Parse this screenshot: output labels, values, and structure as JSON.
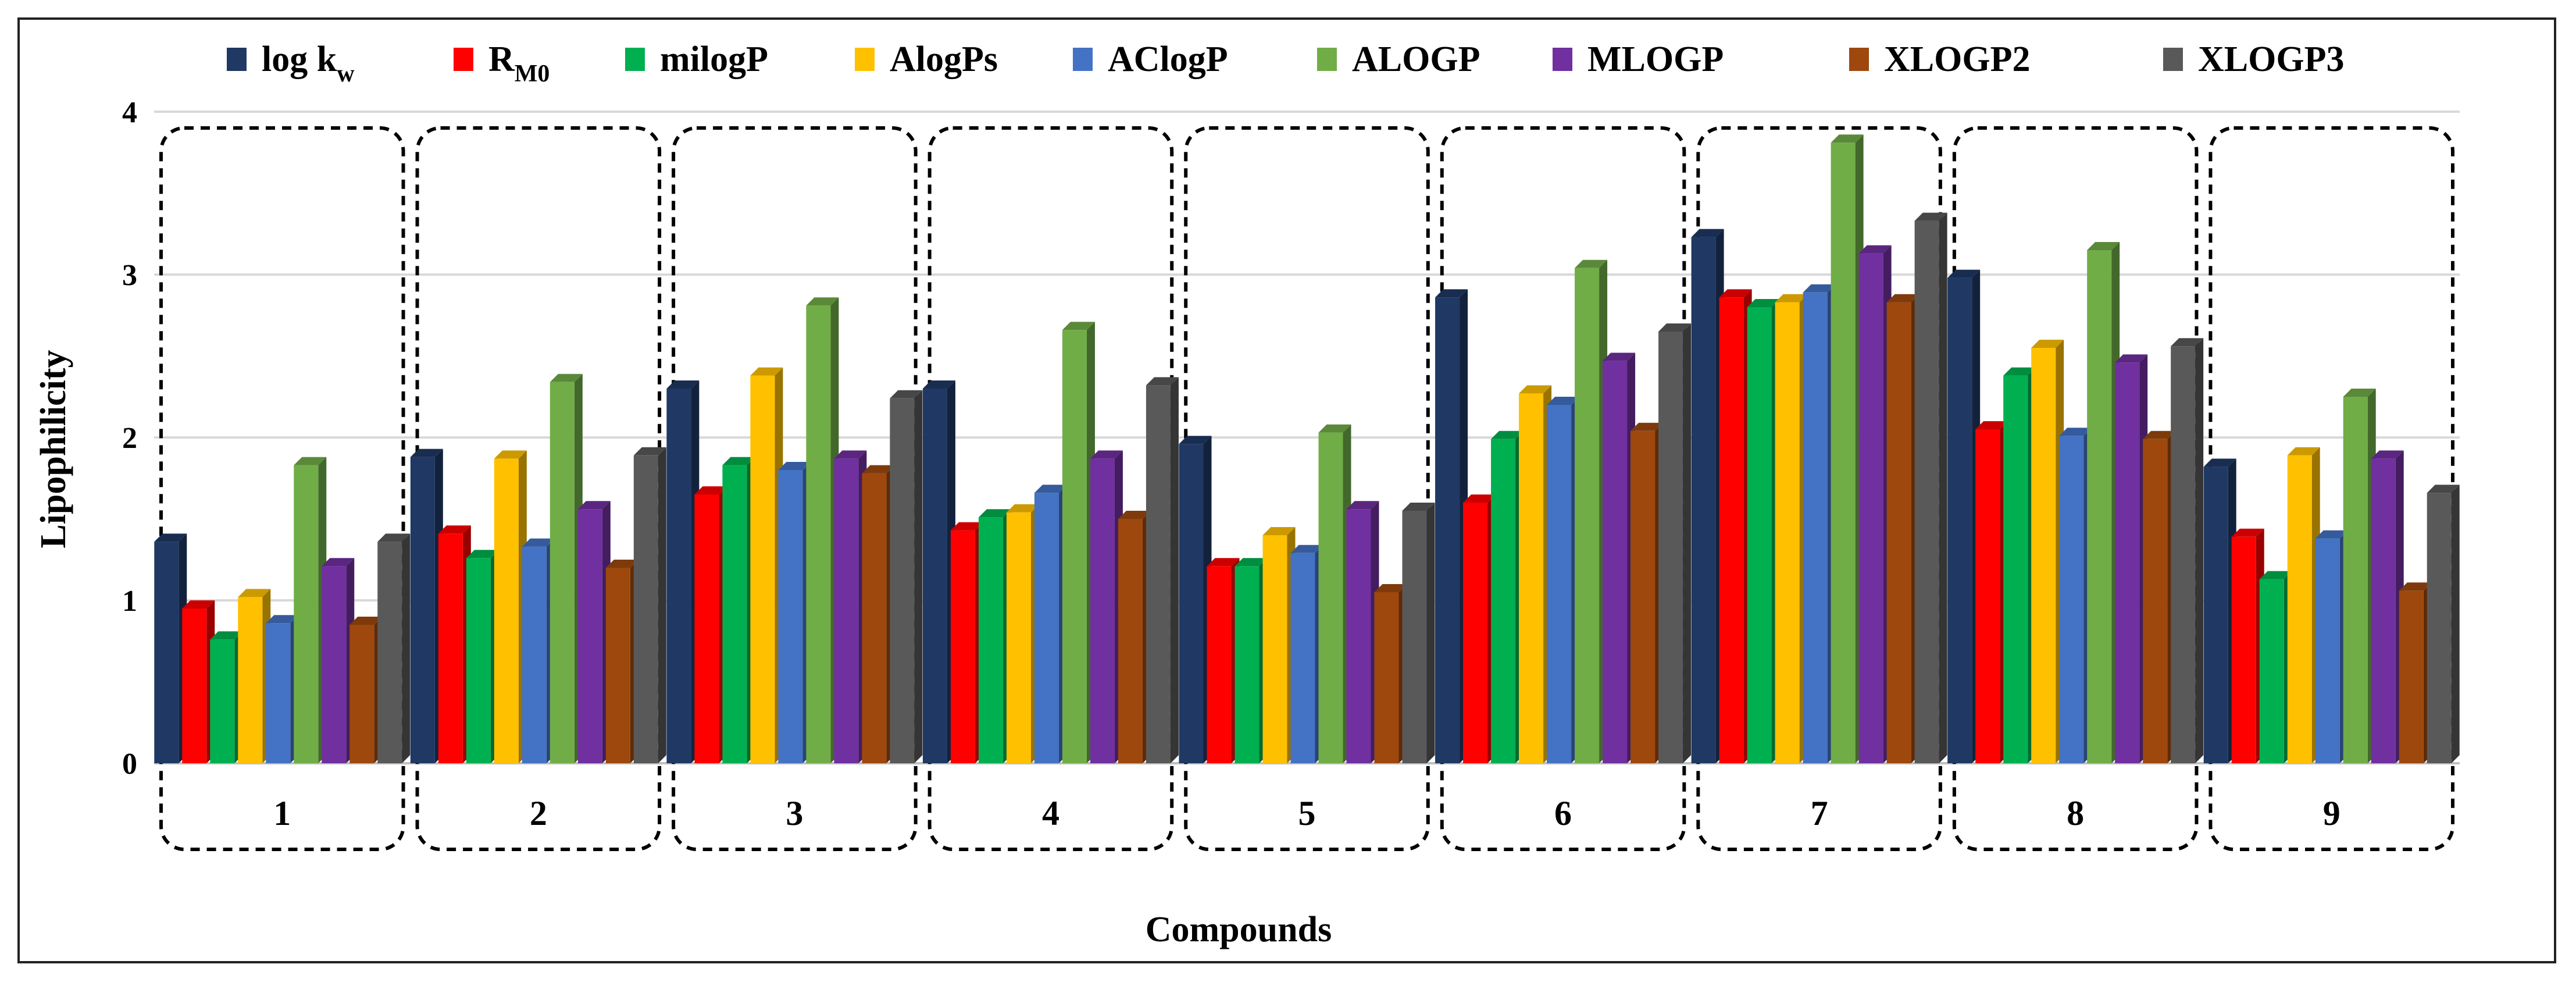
{
  "chart_data": {
    "type": "bar",
    "title": "",
    "xlabel": "Compounds",
    "ylabel": "Lipophilicity",
    "ylim": [
      0,
      4
    ],
    "yticks": [
      "0",
      "1",
      "2",
      "3",
      "4"
    ],
    "grid": true,
    "legend_position": "top",
    "categories": [
      "1",
      "2",
      "3",
      "4",
      "5",
      "6",
      "7",
      "8",
      "9"
    ],
    "series": [
      {
        "name": "log k",
        "sub": "w",
        "color": "#1f3864",
        "values": [
          1.36,
          1.88,
          2.3,
          2.3,
          1.96,
          2.86,
          3.23,
          2.98,
          1.82
        ]
      },
      {
        "name": "R",
        "sub": "M0",
        "color": "#ff0000",
        "values": [
          0.95,
          1.41,
          1.65,
          1.43,
          1.21,
          1.6,
          2.86,
          2.05,
          1.39
        ]
      },
      {
        "name": "milogP",
        "sub": "",
        "color": "#00b050",
        "values": [
          0.76,
          1.26,
          1.83,
          1.51,
          1.21,
          1.99,
          2.8,
          2.38,
          1.13
        ]
      },
      {
        "name": "AlogPs",
        "sub": "",
        "color": "#ffc000",
        "values": [
          1.02,
          1.87,
          2.38,
          1.54,
          1.4,
          2.27,
          2.83,
          2.55,
          1.89
        ]
      },
      {
        "name": "AClogP",
        "sub": "",
        "color": "#4472c4",
        "values": [
          0.86,
          1.33,
          1.8,
          1.66,
          1.29,
          2.2,
          2.89,
          2.01,
          1.38
        ]
      },
      {
        "name": "ALOGP",
        "sub": "",
        "color": "#70ad47",
        "values": [
          1.83,
          2.34,
          2.81,
          2.66,
          2.03,
          3.04,
          3.81,
          3.15,
          2.25
        ]
      },
      {
        "name": "MLOGP",
        "sub": "",
        "color": "#7030a0",
        "values": [
          1.21,
          1.56,
          1.87,
          1.87,
          1.56,
          2.47,
          3.13,
          2.46,
          1.87
        ]
      },
      {
        "name": "XLOGP2",
        "sub": "",
        "color": "#9e480e",
        "values": [
          0.85,
          1.2,
          1.78,
          1.5,
          1.05,
          2.04,
          2.83,
          1.99,
          1.06
        ]
      },
      {
        "name": "XLOGP3",
        "sub": "",
        "color": "#595959",
        "values": [
          1.36,
          1.89,
          2.24,
          2.32,
          1.55,
          2.65,
          3.33,
          2.56,
          1.66
        ]
      }
    ]
  }
}
